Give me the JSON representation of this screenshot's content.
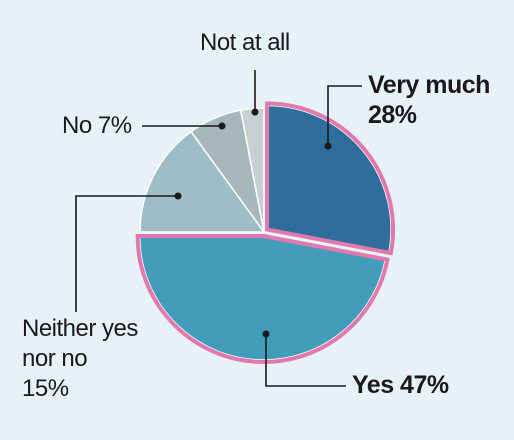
{
  "chart_data": {
    "type": "pie",
    "slices": [
      {
        "name": "Very much",
        "value": 28,
        "color": "#2f6d9c",
        "label_lines": [
          "Very much",
          "28%"
        ],
        "highlight": true
      },
      {
        "name": "Yes",
        "value": 47,
        "color": "#419db9",
        "label_lines": [
          "Yes 47%"
        ],
        "highlight": true
      },
      {
        "name": "Neither yes nor no",
        "value": 15,
        "color": "#9ebec7",
        "label_lines": [
          "Neither yes",
          "nor no",
          "15%"
        ],
        "highlight": false
      },
      {
        "name": "No",
        "value": 7,
        "color": "#a6b7bc",
        "label_lines": [
          "No 7%"
        ],
        "highlight": false
      },
      {
        "name": "Not at all",
        "value": 3,
        "color": "#c6d0d3",
        "label_lines": [
          "Not at all"
        ],
        "highlight": false
      }
    ],
    "highlight_color": "#e279ad",
    "start": "top, clockwise"
  }
}
